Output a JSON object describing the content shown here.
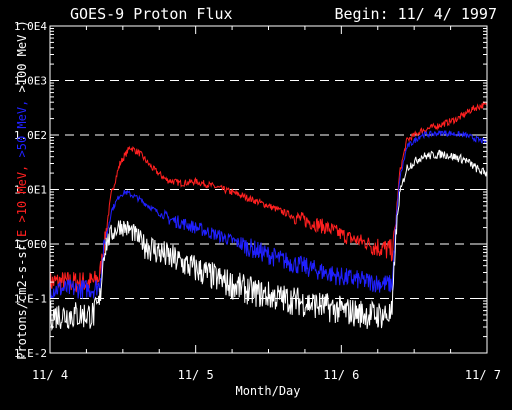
{
  "title": "GOES-9 Proton Flux",
  "begin_label": "Begin: 11/ 4/ 1997",
  "chart_data": {
    "type": "line",
    "title": "GOES-9 Proton Flux",
    "xlabel": "Month/Day",
    "ylabel_parts": [
      {
        "text": "Protons/cm2-s-sr(",
        "color": "#ffffff"
      },
      {
        "text": "E >10 MeV, ",
        "color": "#ff2020"
      },
      {
        "text": ">50 MeV, ",
        "color": "#2020ff"
      },
      {
        "text": ">100 MeV )",
        "color": "#ffffff"
      }
    ],
    "x_unit": "days since 11/4 00:00",
    "xlim": [
      0,
      3
    ],
    "x_ticks": [
      {
        "value": 0,
        "label": "11/ 4"
      },
      {
        "value": 1,
        "label": "11/ 5"
      },
      {
        "value": 2,
        "label": "11/ 6"
      },
      {
        "value": 3,
        "label": "11/ 7"
      }
    ],
    "y_scale": "log",
    "ylim": [
      0.01,
      10000
    ],
    "y_ticks": [
      {
        "value": 0.01,
        "label": "1.E-2"
      },
      {
        "value": 0.1,
        "label": "1.E-1"
      },
      {
        "value": 1,
        "label": "1.0E0"
      },
      {
        "value": 10,
        "label": "1.0E1"
      },
      {
        "value": 100,
        "label": "1.0E2"
      },
      {
        "value": 1000,
        "label": "1.0E3"
      },
      {
        "value": 10000,
        "label": "1.0E4"
      }
    ],
    "grid": {
      "style": "dashed",
      "y_values": [
        0.1,
        1,
        10,
        100,
        1000
      ]
    },
    "series": [
      {
        "color": "#ff2020",
        "noise": 0.35,
        "points": [
          [
            0,
            0.2
          ],
          [
            0.3,
            0.2
          ],
          [
            0.34,
            0.25
          ],
          [
            0.37,
            0.9
          ],
          [
            0.42,
            8
          ],
          [
            0.48,
            30
          ],
          [
            0.55,
            60
          ],
          [
            0.62,
            45
          ],
          [
            0.7,
            25
          ],
          [
            0.8,
            15
          ],
          [
            0.9,
            13
          ],
          [
            1.0,
            14
          ],
          [
            1.1,
            12
          ],
          [
            1.3,
            8
          ],
          [
            1.5,
            5
          ],
          [
            1.7,
            3
          ],
          [
            1.9,
            2
          ],
          [
            2.05,
            1.3
          ],
          [
            2.2,
            1.0
          ],
          [
            2.3,
            0.8
          ],
          [
            2.35,
            0.75
          ],
          [
            2.37,
            2
          ],
          [
            2.4,
            20
          ],
          [
            2.45,
            80
          ],
          [
            2.55,
            120
          ],
          [
            2.7,
            160
          ],
          [
            2.8,
            200
          ],
          [
            2.9,
            300
          ],
          [
            2.97,
            350
          ],
          [
            3.0,
            350
          ]
        ]
      },
      {
        "color": "#2020ff",
        "noise": 0.3,
        "points": [
          [
            0,
            0.15
          ],
          [
            0.3,
            0.15
          ],
          [
            0.34,
            0.18
          ],
          [
            0.37,
            0.8
          ],
          [
            0.42,
            4
          ],
          [
            0.48,
            8
          ],
          [
            0.52,
            9
          ],
          [
            0.6,
            7
          ],
          [
            0.7,
            4.5
          ],
          [
            0.8,
            3
          ],
          [
            1.0,
            2
          ],
          [
            1.2,
            1.3
          ],
          [
            1.4,
            0.8
          ],
          [
            1.6,
            0.5
          ],
          [
            1.8,
            0.35
          ],
          [
            2.0,
            0.25
          ],
          [
            2.2,
            0.2
          ],
          [
            2.35,
            0.18
          ],
          [
            2.37,
            1.5
          ],
          [
            2.4,
            15
          ],
          [
            2.45,
            60
          ],
          [
            2.55,
            100
          ],
          [
            2.7,
            110
          ],
          [
            2.85,
            100
          ],
          [
            2.95,
            80
          ],
          [
            3.0,
            75
          ]
        ]
      },
      {
        "color": "#ffffff",
        "noise": 0.45,
        "points": [
          [
            0,
            0.05
          ],
          [
            0.3,
            0.05
          ],
          [
            0.34,
            0.08
          ],
          [
            0.37,
            0.8
          ],
          [
            0.42,
            1.5
          ],
          [
            0.48,
            2.2
          ],
          [
            0.55,
            1.8
          ],
          [
            0.65,
            1.0
          ],
          [
            0.8,
            0.6
          ],
          [
            1.0,
            0.35
          ],
          [
            1.2,
            0.2
          ],
          [
            1.4,
            0.13
          ],
          [
            1.6,
            0.1
          ],
          [
            1.8,
            0.08
          ],
          [
            2.0,
            0.06
          ],
          [
            2.2,
            0.05
          ],
          [
            2.35,
            0.05
          ],
          [
            2.37,
            1
          ],
          [
            2.4,
            8
          ],
          [
            2.45,
            25
          ],
          [
            2.55,
            40
          ],
          [
            2.7,
            45
          ],
          [
            2.85,
            35
          ],
          [
            2.95,
            22
          ],
          [
            3.0,
            20
          ]
        ]
      }
    ]
  }
}
